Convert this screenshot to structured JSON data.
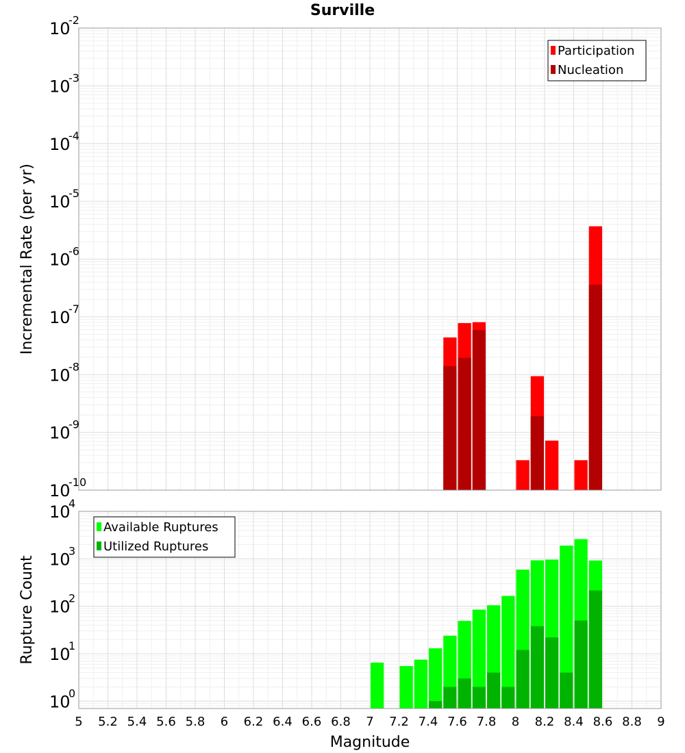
{
  "chart_data": {
    "title": "Surville",
    "xlabel": "Magnitude",
    "xlim": [
      5,
      9
    ],
    "xticks": [
      "5",
      "5.2",
      "5.4",
      "5.6",
      "5.8",
      "6",
      "6.2",
      "6.4",
      "6.6",
      "6.8",
      "7",
      "7.2",
      "7.4",
      "7.6",
      "7.8",
      "8",
      "8.2",
      "8.4",
      "8.6",
      "8.8",
      "9"
    ],
    "bin_width": 0.1,
    "grid": true,
    "panels": [
      {
        "type": "bar",
        "ylabel": "Incremental Rate (per yr)",
        "yscale": "log",
        "ylim": [
          1e-10,
          0.01
        ],
        "ytick_exponents": [
          "-10",
          "-9",
          "-8",
          "-7",
          "-6",
          "-5",
          "-4",
          "-3",
          "-2"
        ],
        "legend_position": "top-right",
        "series": [
          {
            "name": "Participation",
            "color": "#ff0000",
            "points": [
              {
                "x": 7.55,
                "y": 4.4e-08
              },
              {
                "x": 7.65,
                "y": 7.8e-08
              },
              {
                "x": 7.75,
                "y": 8.1e-08
              },
              {
                "x": 8.05,
                "y": 3.3e-10
              },
              {
                "x": 8.15,
                "y": 9.4e-09
              },
              {
                "x": 8.25,
                "y": 7.2e-10
              },
              {
                "x": 8.45,
                "y": 3.3e-10
              },
              {
                "x": 8.55,
                "y": 3.7e-06
              }
            ]
          },
          {
            "name": "Nucleation",
            "color": "#b30000",
            "points": [
              {
                "x": 7.55,
                "y": 1.4e-08
              },
              {
                "x": 7.65,
                "y": 1.95e-08
              },
              {
                "x": 7.75,
                "y": 5.9e-08
              },
              {
                "x": 8.15,
                "y": 1.9e-09
              },
              {
                "x": 8.55,
                "y": 3.6e-07
              }
            ]
          }
        ]
      },
      {
        "type": "bar",
        "ylabel": "Rupture Count",
        "yscale": "log",
        "ylim": [
          0.7,
          10000
        ],
        "ytick_exponents": [
          "0",
          "1",
          "2",
          "3",
          "4"
        ],
        "legend_position": "top-left",
        "series": [
          {
            "name": "Available Ruptures",
            "color": "#00ff00",
            "points": [
              {
                "x": 7.05,
                "y": 6.5
              },
              {
                "x": 7.25,
                "y": 5.5
              },
              {
                "x": 7.35,
                "y": 7.5
              },
              {
                "x": 7.45,
                "y": 13
              },
              {
                "x": 7.55,
                "y": 24
              },
              {
                "x": 7.65,
                "y": 49
              },
              {
                "x": 7.75,
                "y": 85
              },
              {
                "x": 7.85,
                "y": 105
              },
              {
                "x": 7.95,
                "y": 165
              },
              {
                "x": 8.05,
                "y": 590
              },
              {
                "x": 8.15,
                "y": 930
              },
              {
                "x": 8.25,
                "y": 960
              },
              {
                "x": 8.35,
                "y": 1900
              },
              {
                "x": 8.45,
                "y": 2600
              },
              {
                "x": 8.55,
                "y": 920
              }
            ]
          },
          {
            "name": "Utilized Ruptures",
            "color": "#00b300",
            "points": [
              {
                "x": 7.45,
                "y": 1
              },
              {
                "x": 7.55,
                "y": 2
              },
              {
                "x": 7.65,
                "y": 3
              },
              {
                "x": 7.75,
                "y": 2
              },
              {
                "x": 7.85,
                "y": 4
              },
              {
                "x": 7.95,
                "y": 2
              },
              {
                "x": 8.05,
                "y": 12
              },
              {
                "x": 8.15,
                "y": 38
              },
              {
                "x": 8.25,
                "y": 22
              },
              {
                "x": 8.35,
                "y": 4
              },
              {
                "x": 8.45,
                "y": 50
              },
              {
                "x": 8.55,
                "y": 215
              }
            ]
          }
        ]
      }
    ]
  }
}
